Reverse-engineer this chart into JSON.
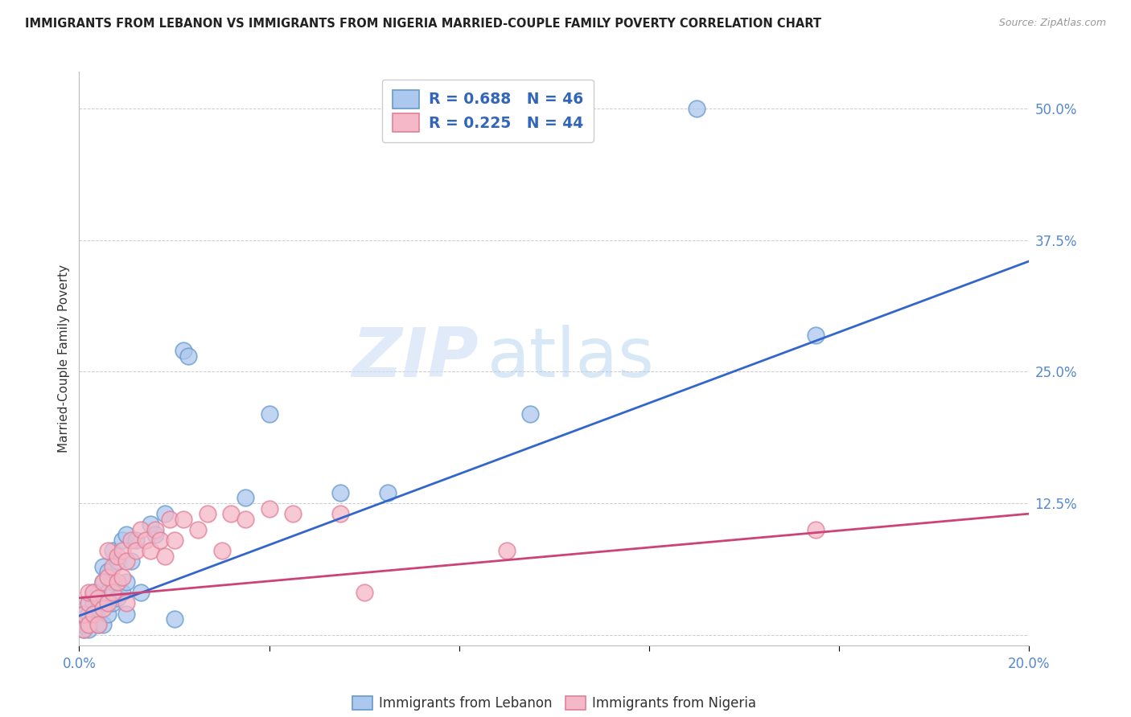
{
  "title": "IMMIGRANTS FROM LEBANON VS IMMIGRANTS FROM NIGERIA MARRIED-COUPLE FAMILY POVERTY CORRELATION CHART",
  "source": "Source: ZipAtlas.com",
  "ylabel": "Married-Couple Family Poverty",
  "yticks": [
    0.0,
    0.125,
    0.25,
    0.375,
    0.5
  ],
  "ytick_labels": [
    "",
    "12.5%",
    "25.0%",
    "37.5%",
    "50.0%"
  ],
  "xlim": [
    0.0,
    0.2
  ],
  "ylim": [
    -0.01,
    0.535
  ],
  "lebanon_color": "#adc8ee",
  "lebanon_edge": "#6699cc",
  "nigeria_color": "#f5b8c8",
  "nigeria_edge": "#e08098",
  "lebanon_line_color": "#3366cc",
  "nigeria_line_color": "#cc4477",
  "lebanon_R": 0.688,
  "lebanon_N": 46,
  "nigeria_R": 0.225,
  "nigeria_N": 44,
  "lebanon_scatter_x": [
    0.001,
    0.001,
    0.001,
    0.002,
    0.002,
    0.002,
    0.002,
    0.003,
    0.003,
    0.003,
    0.004,
    0.004,
    0.004,
    0.005,
    0.005,
    0.005,
    0.005,
    0.006,
    0.006,
    0.006,
    0.007,
    0.007,
    0.007,
    0.008,
    0.008,
    0.009,
    0.009,
    0.01,
    0.01,
    0.01,
    0.011,
    0.012,
    0.013,
    0.015,
    0.016,
    0.018,
    0.02,
    0.022,
    0.023,
    0.035,
    0.04,
    0.055,
    0.065,
    0.095,
    0.13,
    0.155
  ],
  "lebanon_scatter_y": [
    0.005,
    0.01,
    0.02,
    0.01,
    0.02,
    0.03,
    0.005,
    0.02,
    0.03,
    0.04,
    0.01,
    0.025,
    0.04,
    0.01,
    0.03,
    0.05,
    0.065,
    0.02,
    0.04,
    0.06,
    0.03,
    0.05,
    0.08,
    0.035,
    0.07,
    0.04,
    0.09,
    0.02,
    0.05,
    0.095,
    0.07,
    0.09,
    0.04,
    0.105,
    0.095,
    0.115,
    0.015,
    0.27,
    0.265,
    0.13,
    0.21,
    0.135,
    0.135,
    0.21,
    0.5,
    0.285
  ],
  "nigeria_scatter_x": [
    0.001,
    0.001,
    0.002,
    0.002,
    0.002,
    0.003,
    0.003,
    0.004,
    0.004,
    0.005,
    0.005,
    0.006,
    0.006,
    0.006,
    0.007,
    0.007,
    0.008,
    0.008,
    0.009,
    0.009,
    0.01,
    0.01,
    0.011,
    0.012,
    0.013,
    0.014,
    0.015,
    0.016,
    0.017,
    0.018,
    0.019,
    0.02,
    0.022,
    0.025,
    0.027,
    0.03,
    0.032,
    0.035,
    0.04,
    0.045,
    0.055,
    0.06,
    0.09,
    0.155
  ],
  "nigeria_scatter_y": [
    0.005,
    0.02,
    0.01,
    0.03,
    0.04,
    0.02,
    0.04,
    0.01,
    0.035,
    0.025,
    0.05,
    0.03,
    0.055,
    0.08,
    0.04,
    0.065,
    0.05,
    0.075,
    0.055,
    0.08,
    0.03,
    0.07,
    0.09,
    0.08,
    0.1,
    0.09,
    0.08,
    0.1,
    0.09,
    0.075,
    0.11,
    0.09,
    0.11,
    0.1,
    0.115,
    0.08,
    0.115,
    0.11,
    0.12,
    0.115,
    0.115,
    0.04,
    0.08,
    0.1
  ],
  "watermark_zip": "ZIP",
  "watermark_atlas": "atlas",
  "background_color": "#ffffff",
  "grid_color": "#cccccc",
  "tick_color": "#5588cc",
  "legend_color": "#3366bb"
}
